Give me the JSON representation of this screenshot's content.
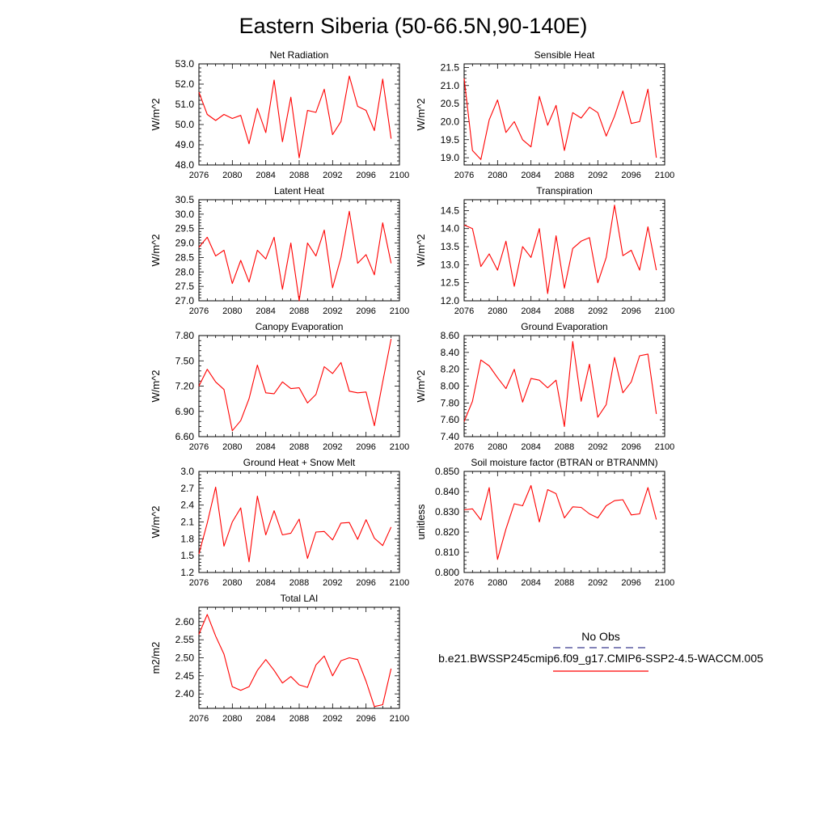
{
  "figure_title": "Eastern Siberia (50-66.5N,90-140E)",
  "legend": {
    "obs_label": "No Obs",
    "obs_color": "#3b3b8f",
    "model_label": "b.e21.BWSSP245cmip6.f09_g17.CMIP6-SSP2-4.5-WACCM.005",
    "model_color": "#ff0000"
  },
  "chart_data": [
    {
      "type": "line",
      "title": "Net Radiation",
      "ylabel": "W/m^2",
      "xlim": [
        2076,
        2100
      ],
      "ylim": [
        48.0,
        53.0
      ],
      "xticks": [
        "2076",
        "2080",
        "2084",
        "2088",
        "2092",
        "2096",
        "2100"
      ],
      "yticks": [
        "48.0",
        "49.0",
        "50.0",
        "51.0",
        "52.0",
        "53.0"
      ],
      "x": [
        2076,
        2077,
        2078,
        2079,
        2080,
        2081,
        2082,
        2083,
        2084,
        2085,
        2086,
        2087,
        2088,
        2089,
        2090,
        2091,
        2092,
        2093,
        2094,
        2095,
        2096,
        2097,
        2098,
        2099
      ],
      "values": [
        51.6,
        50.5,
        50.2,
        50.5,
        50.3,
        50.45,
        49.05,
        50.8,
        49.6,
        52.2,
        49.15,
        51.35,
        48.35,
        50.7,
        50.6,
        51.75,
        49.5,
        50.15,
        52.4,
        50.9,
        50.7,
        49.7,
        52.25,
        49.3
      ],
      "color": "#ff0000"
    },
    {
      "type": "line",
      "title": "Sensible Heat",
      "ylabel": "W/m^2",
      "xlim": [
        2076,
        2100
      ],
      "ylim": [
        18.8,
        21.6
      ],
      "xticks": [
        "2076",
        "2080",
        "2084",
        "2088",
        "2092",
        "2096",
        "2100"
      ],
      "yticks": [
        "19.0",
        "19.5",
        "20.0",
        "20.5",
        "21.0",
        "21.5"
      ],
      "x": [
        2076,
        2077,
        2078,
        2079,
        2080,
        2081,
        2082,
        2083,
        2084,
        2085,
        2086,
        2087,
        2088,
        2089,
        2090,
        2091,
        2092,
        2093,
        2094,
        2095,
        2096,
        2097,
        2098,
        2099
      ],
      "values": [
        21.2,
        19.2,
        18.95,
        20.05,
        20.6,
        19.7,
        20.0,
        19.5,
        19.3,
        20.7,
        19.9,
        20.45,
        19.2,
        20.25,
        20.1,
        20.4,
        20.25,
        19.6,
        20.15,
        20.85,
        19.95,
        20.0,
        20.9,
        19.0
      ],
      "color": "#ff0000"
    },
    {
      "type": "line",
      "title": "Latent Heat",
      "ylabel": "W/m^2",
      "xlim": [
        2076,
        2100
      ],
      "ylim": [
        27.0,
        30.5
      ],
      "xticks": [
        "2076",
        "2080",
        "2084",
        "2088",
        "2092",
        "2096",
        "2100"
      ],
      "yticks": [
        "27.0",
        "27.5",
        "28.0",
        "28.5",
        "29.0",
        "29.5",
        "30.0",
        "30.5"
      ],
      "x": [
        2076,
        2077,
        2078,
        2079,
        2080,
        2081,
        2082,
        2083,
        2084,
        2085,
        2086,
        2087,
        2088,
        2089,
        2090,
        2091,
        2092,
        2093,
        2094,
        2095,
        2096,
        2097,
        2098,
        2099
      ],
      "values": [
        28.85,
        29.2,
        28.55,
        28.75,
        27.6,
        28.4,
        27.65,
        28.75,
        28.45,
        29.2,
        27.4,
        29.0,
        27.0,
        29.0,
        28.55,
        29.45,
        27.45,
        28.5,
        30.1,
        28.3,
        28.6,
        27.9,
        29.7,
        28.3
      ],
      "color": "#ff0000"
    },
    {
      "type": "line",
      "title": "Transpiration",
      "ylabel": "W/m^2",
      "xlim": [
        2076,
        2100
      ],
      "ylim": [
        12.0,
        14.8
      ],
      "xticks": [
        "2076",
        "2080",
        "2084",
        "2088",
        "2092",
        "2096",
        "2100"
      ],
      "yticks": [
        "12.0",
        "12.5",
        "13.0",
        "13.5",
        "14.0",
        "14.5"
      ],
      "x": [
        2076,
        2077,
        2078,
        2079,
        2080,
        2081,
        2082,
        2083,
        2084,
        2085,
        2086,
        2087,
        2088,
        2089,
        2090,
        2091,
        2092,
        2093,
        2094,
        2095,
        2096,
        2097,
        2098,
        2099
      ],
      "values": [
        14.1,
        14.0,
        12.95,
        13.3,
        12.85,
        13.65,
        12.4,
        13.5,
        13.2,
        14.0,
        12.2,
        13.8,
        12.35,
        13.45,
        13.65,
        13.75,
        12.5,
        13.2,
        14.65,
        13.25,
        13.4,
        12.85,
        14.05,
        12.85
      ],
      "color": "#ff0000"
    },
    {
      "type": "line",
      "title": "Canopy Evaporation",
      "ylabel": "W/m^2",
      "xlim": [
        2076,
        2100
      ],
      "ylim": [
        6.6,
        7.8
      ],
      "xticks": [
        "2076",
        "2080",
        "2084",
        "2088",
        "2092",
        "2096",
        "2100"
      ],
      "yticks": [
        "6.60",
        "6.90",
        "7.20",
        "7.50",
        "7.80"
      ],
      "x": [
        2076,
        2077,
        2078,
        2079,
        2080,
        2081,
        2082,
        2083,
        2084,
        2085,
        2086,
        2087,
        2088,
        2089,
        2090,
        2091,
        2092,
        2093,
        2094,
        2095,
        2096,
        2097,
        2098,
        2099
      ],
      "values": [
        7.2,
        7.4,
        7.25,
        7.16,
        6.67,
        6.79,
        7.05,
        7.45,
        7.12,
        7.11,
        7.25,
        7.17,
        7.18,
        7.0,
        7.1,
        7.43,
        7.35,
        7.48,
        7.14,
        7.12,
        7.13,
        6.73,
        7.25,
        7.76
      ],
      "color": "#ff0000"
    },
    {
      "type": "line",
      "title": "Ground Evaporation",
      "ylabel": "W/m^2",
      "xlim": [
        2076,
        2100
      ],
      "ylim": [
        7.4,
        8.6
      ],
      "xticks": [
        "2076",
        "2080",
        "2084",
        "2088",
        "2092",
        "2096",
        "2100"
      ],
      "yticks": [
        "7.40",
        "7.60",
        "7.80",
        "8.00",
        "8.20",
        "8.40",
        "8.60"
      ],
      "x": [
        2076,
        2077,
        2078,
        2079,
        2080,
        2081,
        2082,
        2083,
        2084,
        2085,
        2086,
        2087,
        2088,
        2089,
        2090,
        2091,
        2092,
        2093,
        2094,
        2095,
        2096,
        2097,
        2098,
        2099
      ],
      "values": [
        7.58,
        7.82,
        8.31,
        8.24,
        8.1,
        7.97,
        8.2,
        7.81,
        8.09,
        8.07,
        7.98,
        8.07,
        7.52,
        8.53,
        7.82,
        8.26,
        7.63,
        7.78,
        8.34,
        7.92,
        8.05,
        8.36,
        8.38,
        7.67
      ],
      "color": "#ff0000"
    },
    {
      "type": "line",
      "title": "Ground Heat + Snow Melt",
      "ylabel": "W/m^2",
      "xlim": [
        2076,
        2100
      ],
      "ylim": [
        1.2,
        3.0
      ],
      "xticks": [
        "2076",
        "2080",
        "2084",
        "2088",
        "2092",
        "2096",
        "2100"
      ],
      "yticks": [
        "1.2",
        "1.5",
        "1.8",
        "2.1",
        "2.4",
        "2.7",
        "3.0"
      ],
      "x": [
        2076,
        2077,
        2078,
        2079,
        2080,
        2081,
        2082,
        2083,
        2084,
        2085,
        2086,
        2087,
        2088,
        2089,
        2090,
        2091,
        2092,
        2093,
        2094,
        2095,
        2096,
        2097,
        2098,
        2099
      ],
      "values": [
        1.53,
        2.08,
        2.72,
        1.67,
        2.1,
        2.35,
        1.39,
        2.56,
        1.87,
        2.3,
        1.87,
        1.9,
        2.15,
        1.45,
        1.92,
        1.93,
        1.78,
        2.08,
        2.09,
        1.79,
        2.14,
        1.81,
        1.68,
        2.01
      ],
      "color": "#ff0000"
    },
    {
      "type": "line",
      "title": "Soil moisture factor (BTRAN or BTRANMN)",
      "ylabel": "unitless",
      "xlim": [
        2076,
        2100
      ],
      "ylim": [
        0.8,
        0.85
      ],
      "xticks": [
        "2076",
        "2080",
        "2084",
        "2088",
        "2092",
        "2096",
        "2100"
      ],
      "yticks": [
        "0.800",
        "0.810",
        "0.820",
        "0.830",
        "0.840",
        "0.850"
      ],
      "x": [
        2076,
        2077,
        2078,
        2079,
        2080,
        2081,
        2082,
        2083,
        2084,
        2085,
        2086,
        2087,
        2088,
        2089,
        2090,
        2091,
        2092,
        2093,
        2094,
        2095,
        2096,
        2097,
        2098,
        2099
      ],
      "values": [
        0.831,
        0.8315,
        0.826,
        0.842,
        0.8065,
        0.8215,
        0.834,
        0.833,
        0.843,
        0.825,
        0.841,
        0.839,
        0.827,
        0.8325,
        0.8322,
        0.829,
        0.827,
        0.833,
        0.8355,
        0.836,
        0.8285,
        0.829,
        0.842,
        0.8262
      ],
      "color": "#ff0000"
    },
    {
      "type": "line",
      "title": "Total LAI",
      "ylabel": "m2/m2",
      "xlim": [
        2076,
        2100
      ],
      "ylim": [
        2.36,
        2.64
      ],
      "xticks": [
        "2076",
        "2080",
        "2084",
        "2088",
        "2092",
        "2096",
        "2100"
      ],
      "yticks": [
        "2.40",
        "2.45",
        "2.50",
        "2.55",
        "2.60"
      ],
      "x": [
        2076,
        2077,
        2078,
        2079,
        2080,
        2081,
        2082,
        2083,
        2084,
        2085,
        2086,
        2087,
        2088,
        2089,
        2090,
        2091,
        2092,
        2093,
        2094,
        2095,
        2096,
        2097,
        2098,
        2099
      ],
      "values": [
        2.565,
        2.62,
        2.56,
        2.51,
        2.42,
        2.41,
        2.42,
        2.465,
        2.495,
        2.465,
        2.43,
        2.448,
        2.425,
        2.418,
        2.48,
        2.505,
        2.45,
        2.492,
        2.5,
        2.495,
        2.435,
        2.365,
        2.37,
        2.47
      ],
      "color": "#ff0000"
    }
  ]
}
